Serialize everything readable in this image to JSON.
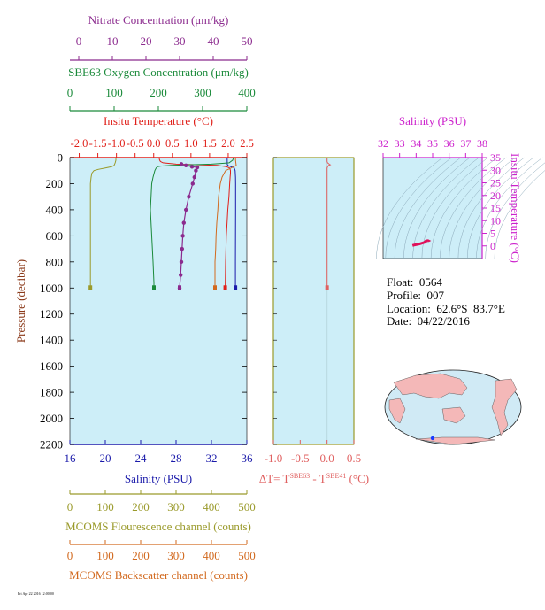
{
  "colors": {
    "nitrate": "#8b2a8e",
    "oxygen": "#1a8a3a",
    "temperature": "#e0201a",
    "salinity": "#1a1aaa",
    "fluorescence": "#9a9a2a",
    "backscatter": "#d2691e",
    "delta_t": "#e06060",
    "ts_axis": "#cc20cc",
    "panel_bg": "#cdeef8"
  },
  "axes": {
    "nitrate_title": "Nitrate Concentration (μm/kg)",
    "nitrate_ticks": [
      "0",
      "10",
      "20",
      "30",
      "40",
      "50"
    ],
    "oxygen_title": "SBE63 Oxygen Concentration (μm/kg)",
    "oxygen_ticks": [
      "0",
      "100",
      "200",
      "300",
      "400"
    ],
    "temp_title": "Insitu Temperature (°C)",
    "temp_ticks": [
      "-2.0",
      "-1.5",
      "-1.0",
      "-0.5",
      "0.0",
      "0.5",
      "1.0",
      "1.5",
      "2.0",
      "2.5"
    ],
    "pressure_title": "Pressure (decibar)",
    "pressure_ticks": [
      "0",
      "200",
      "400",
      "600",
      "800",
      "1000",
      "1200",
      "1400",
      "1600",
      "1800",
      "2000",
      "2200"
    ],
    "salinity_title": "Salinity (PSU)",
    "salinity_ticks": [
      "16",
      "20",
      "24",
      "28",
      "32",
      "36"
    ],
    "fluor_title": "MCOMS Flourescence channel (counts)",
    "fluor_ticks": [
      "0",
      "100",
      "200",
      "300",
      "400",
      "500"
    ],
    "bback_title": "MCOMS Backscatter channel (counts)",
    "bback_ticks": [
      "0",
      "100",
      "200",
      "300",
      "400",
      "500"
    ],
    "dt_ticks": [
      "-1.0",
      "-0.5",
      "0.0",
      "0.5"
    ],
    "dt_title_prefix": "ΔT= T",
    "dt_sup1": "SBE63",
    "dt_mid": " - T",
    "dt_sup2": "SBE41",
    "dt_suffix": " (°C)",
    "ts_sal_title": "Salinity (PSU)",
    "ts_sal_ticks": [
      "32",
      "33",
      "34",
      "35",
      "36",
      "37",
      "38"
    ],
    "ts_temp_title": "Insitu Temperature (°C)",
    "ts_temp_ticks": [
      "0",
      "5",
      "10",
      "15",
      "20",
      "25",
      "30",
      "35"
    ]
  },
  "info": {
    "float": "Float:  0564",
    "profile": "Profile:  007",
    "location": "Location:  62.6°S  83.7°E",
    "date": "Date:  04/22/2016"
  },
  "stamp": "Fri Apr 22 2016 12:00:00",
  "chart_data": {
    "type": "line",
    "pressure_range": [
      0,
      2200
    ],
    "series": [
      {
        "name": "Temperature",
        "x_range": [
          -2.25,
          2.5
        ],
        "pressure": [
          0,
          10,
          20,
          30,
          40,
          50,
          55,
          60,
          65,
          70,
          75,
          80,
          90,
          100,
          120,
          150,
          200,
          300,
          400,
          500,
          600,
          800,
          1000
        ],
        "values": [
          0.15,
          0.15,
          0.16,
          0.18,
          0.25,
          0.6,
          1.2,
          1.7,
          1.85,
          1.95,
          2.0,
          2.04,
          2.05,
          2.06,
          2.06,
          2.05,
          2.04,
          2.02,
          1.99,
          1.97,
          1.95,
          1.93,
          1.92
        ]
      },
      {
        "name": "Salinity",
        "x_range": [
          16,
          36
        ],
        "pressure": [
          0,
          50,
          60,
          70,
          75,
          80,
          100,
          150,
          200,
          400,
          600,
          800,
          1000
        ],
        "values": [
          33.78,
          33.79,
          33.85,
          34.2,
          34.5,
          34.58,
          34.68,
          34.72,
          34.73,
          34.73,
          34.72,
          34.71,
          34.71
        ]
      },
      {
        "name": "Oxygen",
        "x_range": [
          0,
          400
        ],
        "pressure": [
          0,
          20,
          40,
          50,
          60,
          65,
          70,
          80,
          100,
          150,
          200,
          400,
          600,
          800,
          960,
          1000
        ],
        "values": [
          370,
          368,
          360,
          320,
          230,
          205,
          198,
          195,
          192,
          188,
          185,
          182,
          185,
          188,
          190,
          190
        ]
      },
      {
        "name": "Nitrate",
        "x_range": [
          0,
          50
        ],
        "pressure": [
          50,
          60,
          70,
          75,
          100,
          150,
          200,
          300,
          400,
          500,
          600,
          700,
          800,
          900,
          1000
        ],
        "values": [
          31.5,
          32.8,
          34.5,
          36,
          35.6,
          35.2,
          34.7,
          33.6,
          32.8,
          32.2,
          31.9,
          31.7,
          31.5,
          31.3,
          31.0
        ]
      },
      {
        "name": "Fluorescence",
        "x_range": [
          0,
          500
        ],
        "pressure": [
          0,
          20,
          40,
          60,
          70,
          80,
          90,
          100,
          120,
          150,
          200,
          300,
          400,
          500,
          600,
          800,
          1000
        ],
        "values": [
          130,
          130,
          128,
          125,
          118,
          100,
          80,
          68,
          62,
          60,
          58,
          58,
          58,
          58,
          58,
          58,
          58
        ]
      },
      {
        "name": "Backscatter",
        "x_range": [
          0,
          500
        ],
        "pressure": [
          0,
          20,
          40,
          60,
          80,
          100,
          150,
          200,
          300,
          400,
          500,
          600,
          700,
          800,
          900,
          1000
        ],
        "values": [
          468,
          468,
          469,
          470,
          455,
          440,
          430,
          425,
          420,
          418,
          415,
          413,
          412,
          410,
          410,
          410
        ]
      },
      {
        "name": "Delta T",
        "x_range": [
          -1.0,
          0.5
        ],
        "pressure": [
          0,
          30,
          40,
          50,
          55,
          60,
          70,
          80,
          100,
          200,
          400,
          600,
          800,
          1000
        ],
        "values": [
          0.0,
          0.0,
          0.01,
          0.04,
          0.06,
          0.03,
          0.01,
          0.0,
          0.0,
          0.0,
          0.0,
          0.0,
          0.0,
          0.0
        ]
      }
    ],
    "ts_diagram": {
      "salinity_range": [
        32,
        38
      ],
      "temperature_range": [
        -5,
        35
      ],
      "salinity": [
        33.78,
        33.85,
        34.2,
        34.5,
        34.6,
        34.68,
        34.72,
        34.73,
        34.72,
        34.71
      ],
      "temperature": [
        0.15,
        0.3,
        0.8,
        1.4,
        1.9,
        2.05,
        2.05,
        2.02,
        1.97,
        1.92
      ]
    }
  }
}
